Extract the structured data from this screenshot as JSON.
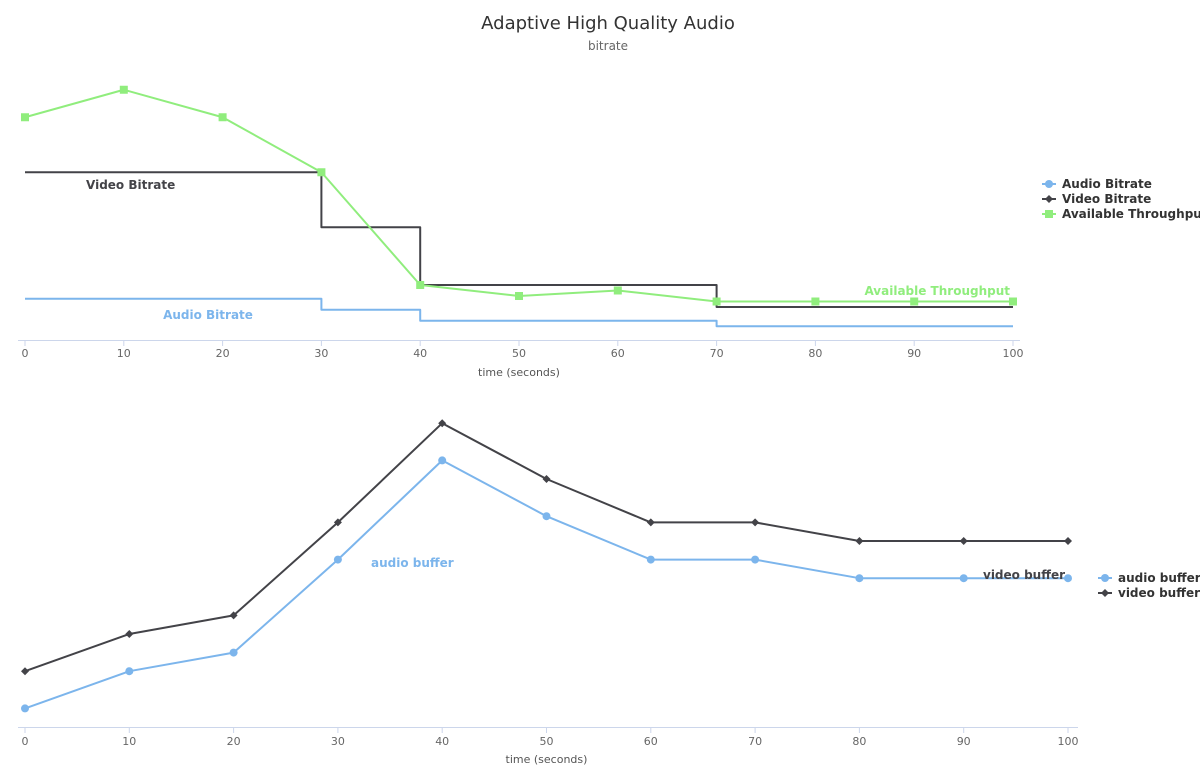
{
  "title": "Adaptive High Quality Audio",
  "subtitle": "bitrate",
  "chart_data": [
    {
      "type": "line",
      "step": true,
      "xlabel": "time (seconds)",
      "xlim": [
        0,
        100
      ],
      "x_ticks": [
        0,
        10,
        20,
        30,
        40,
        50,
        60,
        70,
        80,
        90,
        100
      ],
      "ylim": [
        0,
        100
      ],
      "grid": false,
      "legend": "right",
      "series": [
        {
          "name": "Audio Bitrate",
          "color": "#7cb5ec",
          "marker": "circle",
          "step": true,
          "x": [
            0,
            30,
            40,
            70,
            100
          ],
          "values": [
            15,
            11,
            7,
            5,
            5
          ],
          "label": "Audio Bitrate"
        },
        {
          "name": "Video Bitrate",
          "color": "#434348",
          "marker": "diamond",
          "step": true,
          "x": [
            0,
            30,
            40,
            70,
            100
          ],
          "values": [
            61,
            41,
            20,
            12,
            12
          ],
          "label": "Video Bitrate"
        },
        {
          "name": "Available Throughput",
          "color": "#90ed7d",
          "marker": "square",
          "step": false,
          "x": [
            0,
            10,
            20,
            30,
            40,
            50,
            60,
            70,
            80,
            90,
            100
          ],
          "values": [
            81,
            91,
            81,
            61,
            20,
            16,
            18,
            14,
            14,
            14,
            14
          ],
          "label": "Available Throughput"
        }
      ]
    },
    {
      "type": "line",
      "xlabel": "time (seconds)",
      "xlim": [
        0,
        100
      ],
      "x_ticks": [
        0,
        10,
        20,
        30,
        40,
        50,
        60,
        70,
        80,
        90,
        100
      ],
      "ylim": [
        0,
        100
      ],
      "grid": false,
      "legend": "right",
      "series": [
        {
          "name": "audio buffer",
          "color": "#7cb5ec",
          "marker": "circle",
          "x": [
            0,
            10,
            20,
            30,
            40,
            50,
            60,
            70,
            80,
            90,
            100
          ],
          "values": [
            6,
            18,
            24,
            54,
            86,
            68,
            54,
            54,
            48,
            48,
            48
          ],
          "label": "audio buffer"
        },
        {
          "name": "video buffer",
          "color": "#434348",
          "marker": "diamond",
          "x": [
            0,
            10,
            20,
            30,
            40,
            50,
            60,
            70,
            80,
            90,
            100
          ],
          "values": [
            18,
            30,
            36,
            66,
            98,
            80,
            66,
            66,
            60,
            60,
            60
          ],
          "label": "video buffer"
        }
      ]
    }
  ]
}
